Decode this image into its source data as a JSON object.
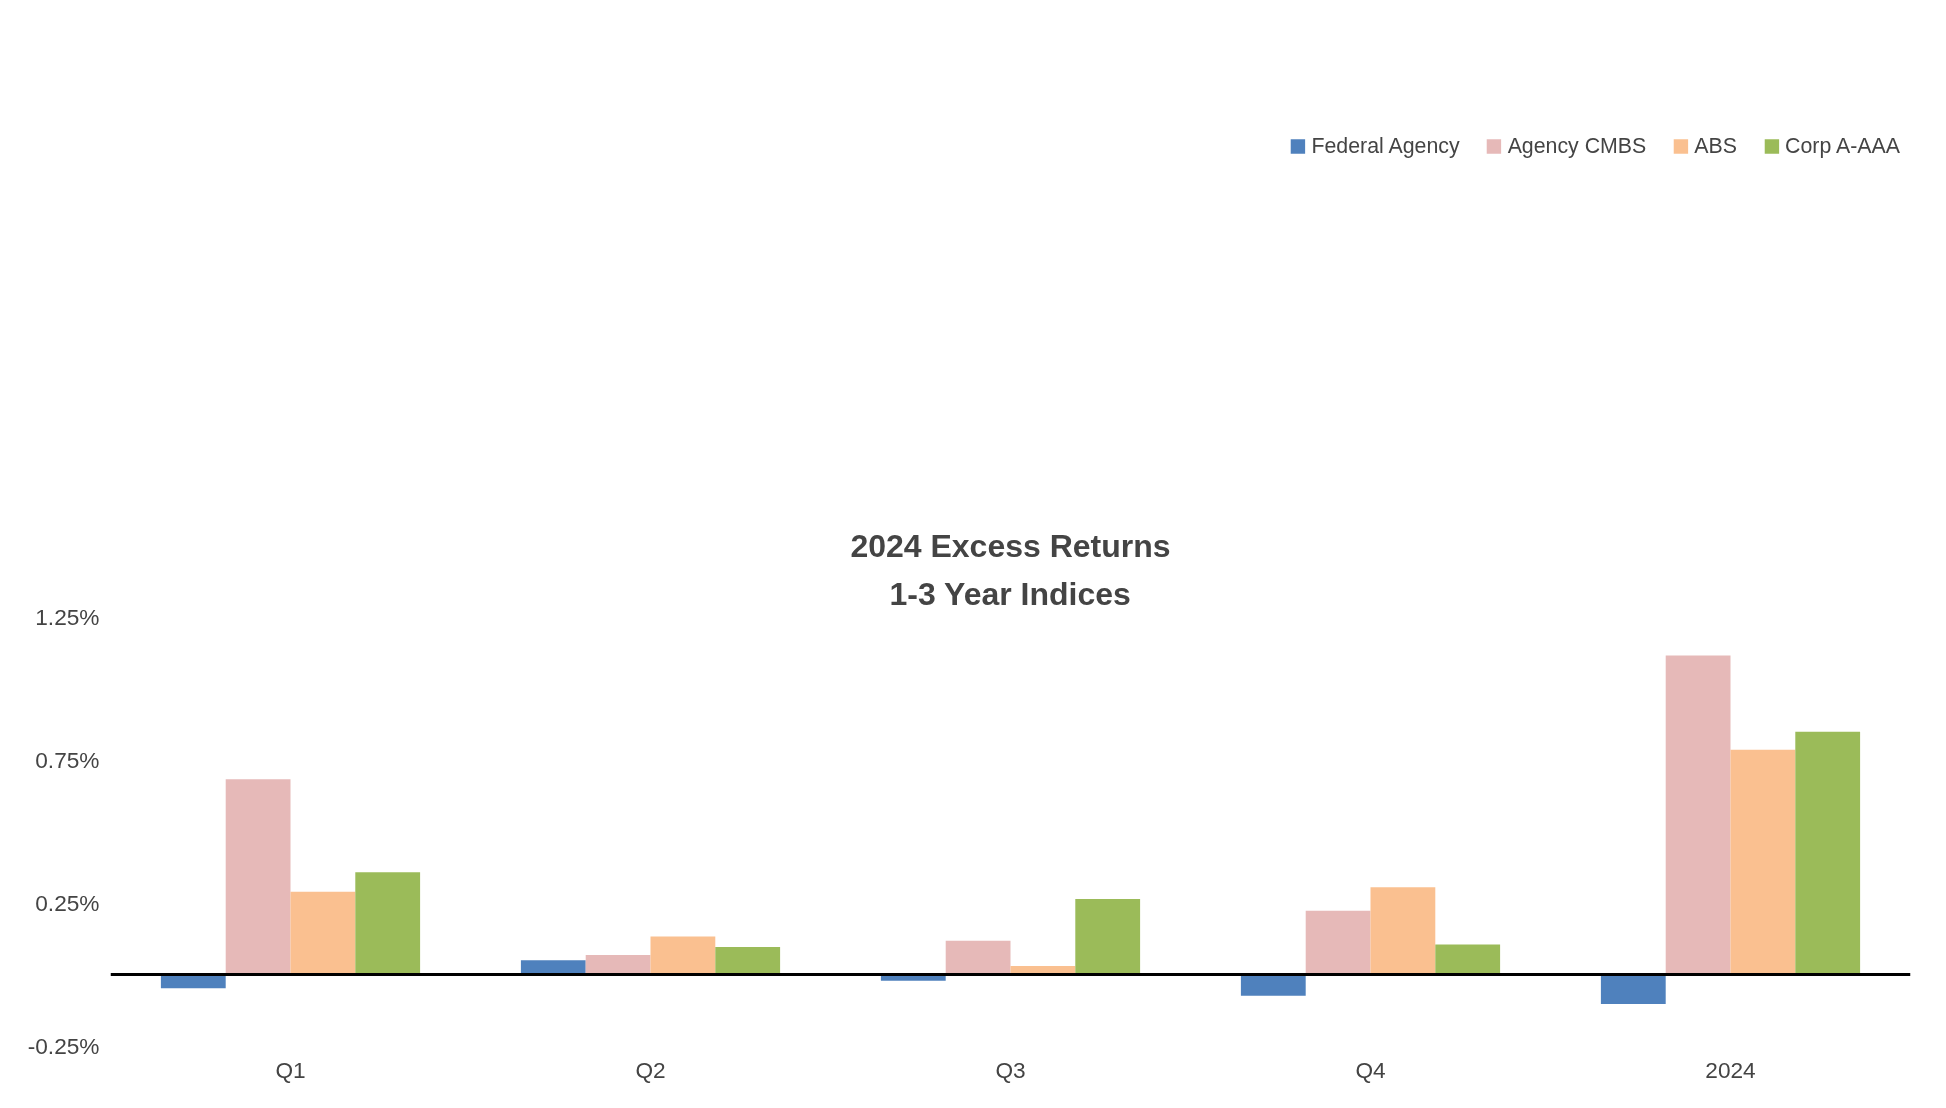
{
  "chart_data": {
    "type": "bar",
    "title": "2024 Excess Returns",
    "subtitle": "1-3 Year Indices",
    "categories": [
      "Q1",
      "Q2",
      "Q3",
      "Q4",
      "2024"
    ],
    "series": [
      {
        "name": "Federal Agency",
        "color": "#4f81bd",
        "values": [
          -0.05,
          0.048,
          -0.024,
          -0.076,
          -0.105
        ]
      },
      {
        "name": "Agency CMBS",
        "color": "#e6b9b8",
        "values": [
          0.681,
          0.066,
          0.116,
          0.221,
          1.114
        ]
      },
      {
        "name": "ABS",
        "color": "#fac090",
        "values": [
          0.288,
          0.131,
          0.028,
          0.303,
          0.784
        ]
      },
      {
        "name": "Corp A-AAA",
        "color": "#9bbb59",
        "values": [
          0.356,
          0.094,
          0.262,
          0.103,
          0.847
        ]
      }
    ],
    "ylim": [
      -0.25,
      1.25
    ],
    "yticks": [
      {
        "value": -0.25,
        "label": "-0.25%"
      },
      {
        "value": 0.25,
        "label": "0.25%"
      },
      {
        "value": 0.75,
        "label": "0.75%"
      },
      {
        "value": 1.25,
        "label": "1.25%"
      }
    ],
    "grid": false,
    "legend": "top"
  }
}
